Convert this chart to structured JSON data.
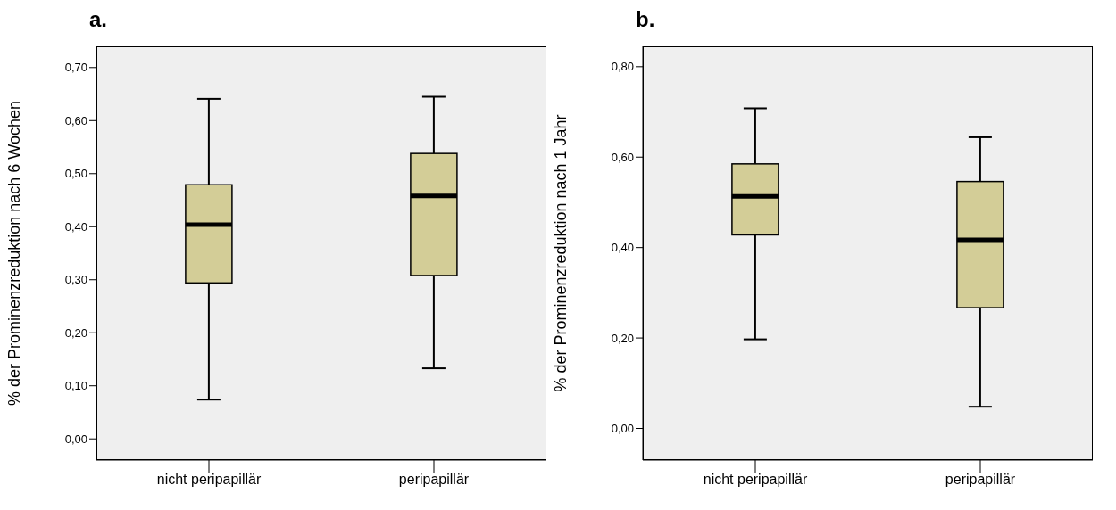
{
  "chart_data": [
    {
      "type": "box",
      "title": "a.",
      "ylabel": "% der Prominenzreduktion nach 6 Wochen",
      "categories": [
        "nicht peripapillär",
        "peripapillär"
      ],
      "series": [
        {
          "color": "#d3cd97",
          "boxes": [
            {
              "low": 0.074,
              "q1": 0.294,
              "median": 0.404,
              "q3": 0.479,
              "high": 0.641
            },
            {
              "low": 0.133,
              "q1": 0.308,
              "median": 0.458,
              "q3": 0.538,
              "high": 0.645
            }
          ]
        }
      ],
      "ylim": [
        -0.04,
        0.74
      ],
      "yticks": [
        {
          "value": 0,
          "label": "0,00"
        },
        {
          "value": 0.1,
          "label": "0,10"
        },
        {
          "value": 0.2,
          "label": "0,20"
        },
        {
          "value": 0.3,
          "label": "0,30"
        },
        {
          "value": 0.4,
          "label": "0,40"
        },
        {
          "value": 0.5,
          "label": "0,50"
        },
        {
          "value": 0.6,
          "label": "0,60"
        },
        {
          "value": 0.7,
          "label": "0,70"
        }
      ]
    },
    {
      "type": "box",
      "title": "b.",
      "ylabel": "% der Prominenzreduktion nach 1 Jahr",
      "categories": [
        "nicht peripapillär",
        "peripapillär"
      ],
      "series": [
        {
          "color": "#d3cd97",
          "boxes": [
            {
              "low": 0.197,
              "q1": 0.428,
              "median": 0.513,
              "q3": 0.585,
              "high": 0.708
            },
            {
              "low": 0.048,
              "q1": 0.267,
              "median": 0.417,
              "q3": 0.546,
              "high": 0.644
            }
          ]
        }
      ],
      "ylim": [
        -0.07,
        0.845
      ],
      "yticks": [
        {
          "value": 0,
          "label": "0,00"
        },
        {
          "value": 0.2,
          "label": "0,20"
        },
        {
          "value": 0.4,
          "label": "0,40"
        },
        {
          "value": 0.6,
          "label": "0,60"
        },
        {
          "value": 0.8,
          "label": "0,80"
        }
      ]
    }
  ]
}
